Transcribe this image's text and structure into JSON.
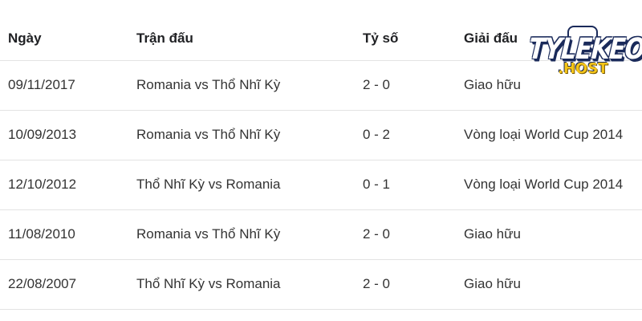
{
  "table": {
    "headers": [
      "Ngày",
      "Trận đấu",
      "Tỷ số",
      "Giải đấu"
    ],
    "rows": [
      [
        "09/11/2017",
        "Romania vs Thổ Nhĩ Kỳ",
        "2 - 0",
        "Giao hữu"
      ],
      [
        "10/09/2013",
        "Romania vs Thổ Nhĩ Kỳ",
        "0 - 2",
        "Vòng loại World Cup 2014"
      ],
      [
        "12/10/2012",
        "Thổ Nhĩ Kỳ vs Romania",
        "0 - 1",
        "Vòng loại World Cup 2014"
      ],
      [
        "11/08/2010",
        "Romania vs Thổ Nhĩ Kỳ",
        "2 - 0",
        "Giao hữu"
      ],
      [
        "22/08/2007",
        "Thổ Nhĩ Kỳ vs Romania",
        "2 - 0",
        "Giao hữu"
      ]
    ]
  },
  "logo": {
    "main": "TYLEKEO",
    "sub": ".HOST",
    "colors": {
      "main": "#ffffff",
      "outline": "#1a2a5a",
      "sub": "#f5c518"
    }
  }
}
